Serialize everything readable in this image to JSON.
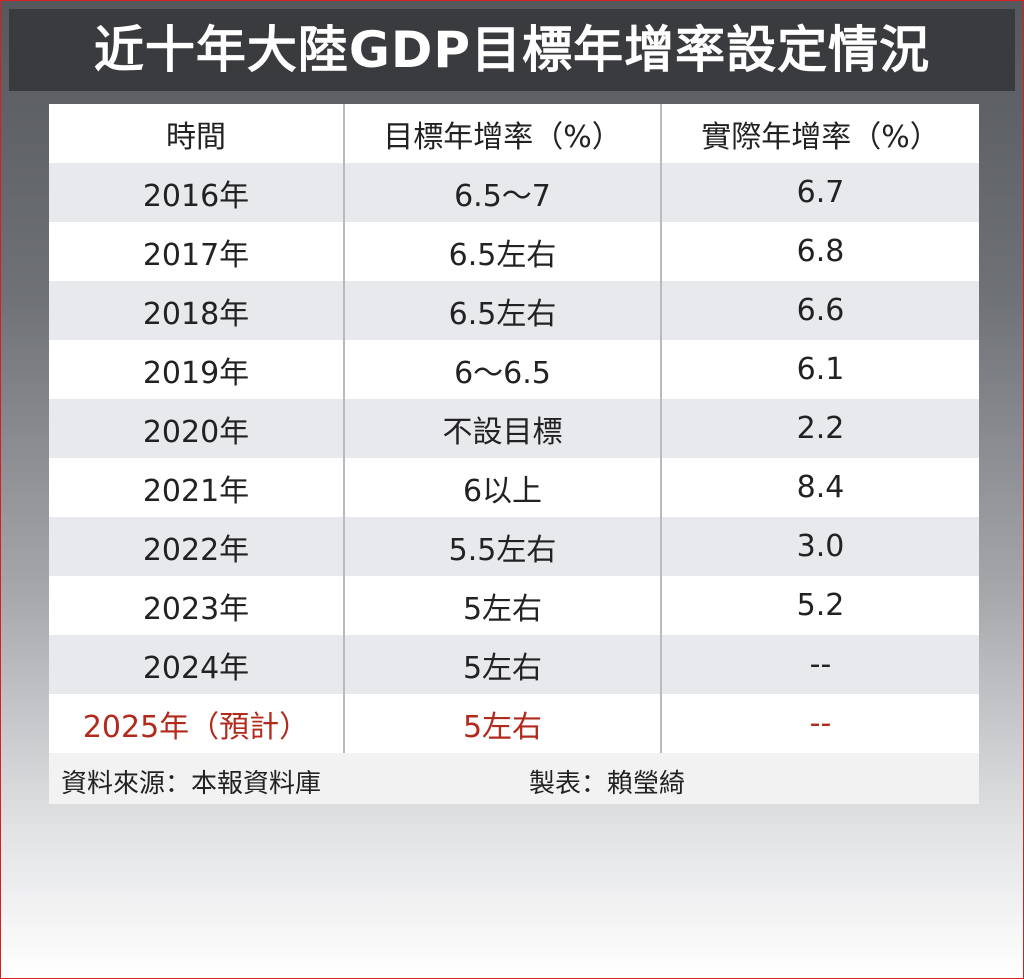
{
  "title": "近十年大陸GDP目標年增率設定情況",
  "table": {
    "headers": [
      "時間",
      "目標年增率（%）",
      "實際年增率（%）"
    ],
    "rows": [
      [
        "2016年",
        "6.5～7",
        "6.7"
      ],
      [
        "2017年",
        "6.5左右",
        "6.8"
      ],
      [
        "2018年",
        "6.5左右",
        "6.6"
      ],
      [
        "2019年",
        "6～6.5",
        "6.1"
      ],
      [
        "2020年",
        "不設目標",
        "2.2"
      ],
      [
        "2021年",
        "6以上",
        "8.4"
      ],
      [
        "2022年",
        "5.5左右",
        "3.0"
      ],
      [
        "2023年",
        "5左右",
        "5.2"
      ],
      [
        "2024年",
        "5左右",
        "--"
      ],
      [
        "2025年（預計）",
        "5左右",
        "--"
      ]
    ]
  },
  "footer": {
    "source": "資料來源：本報資料庫",
    "maker": "製表：賴瑩綺"
  }
}
